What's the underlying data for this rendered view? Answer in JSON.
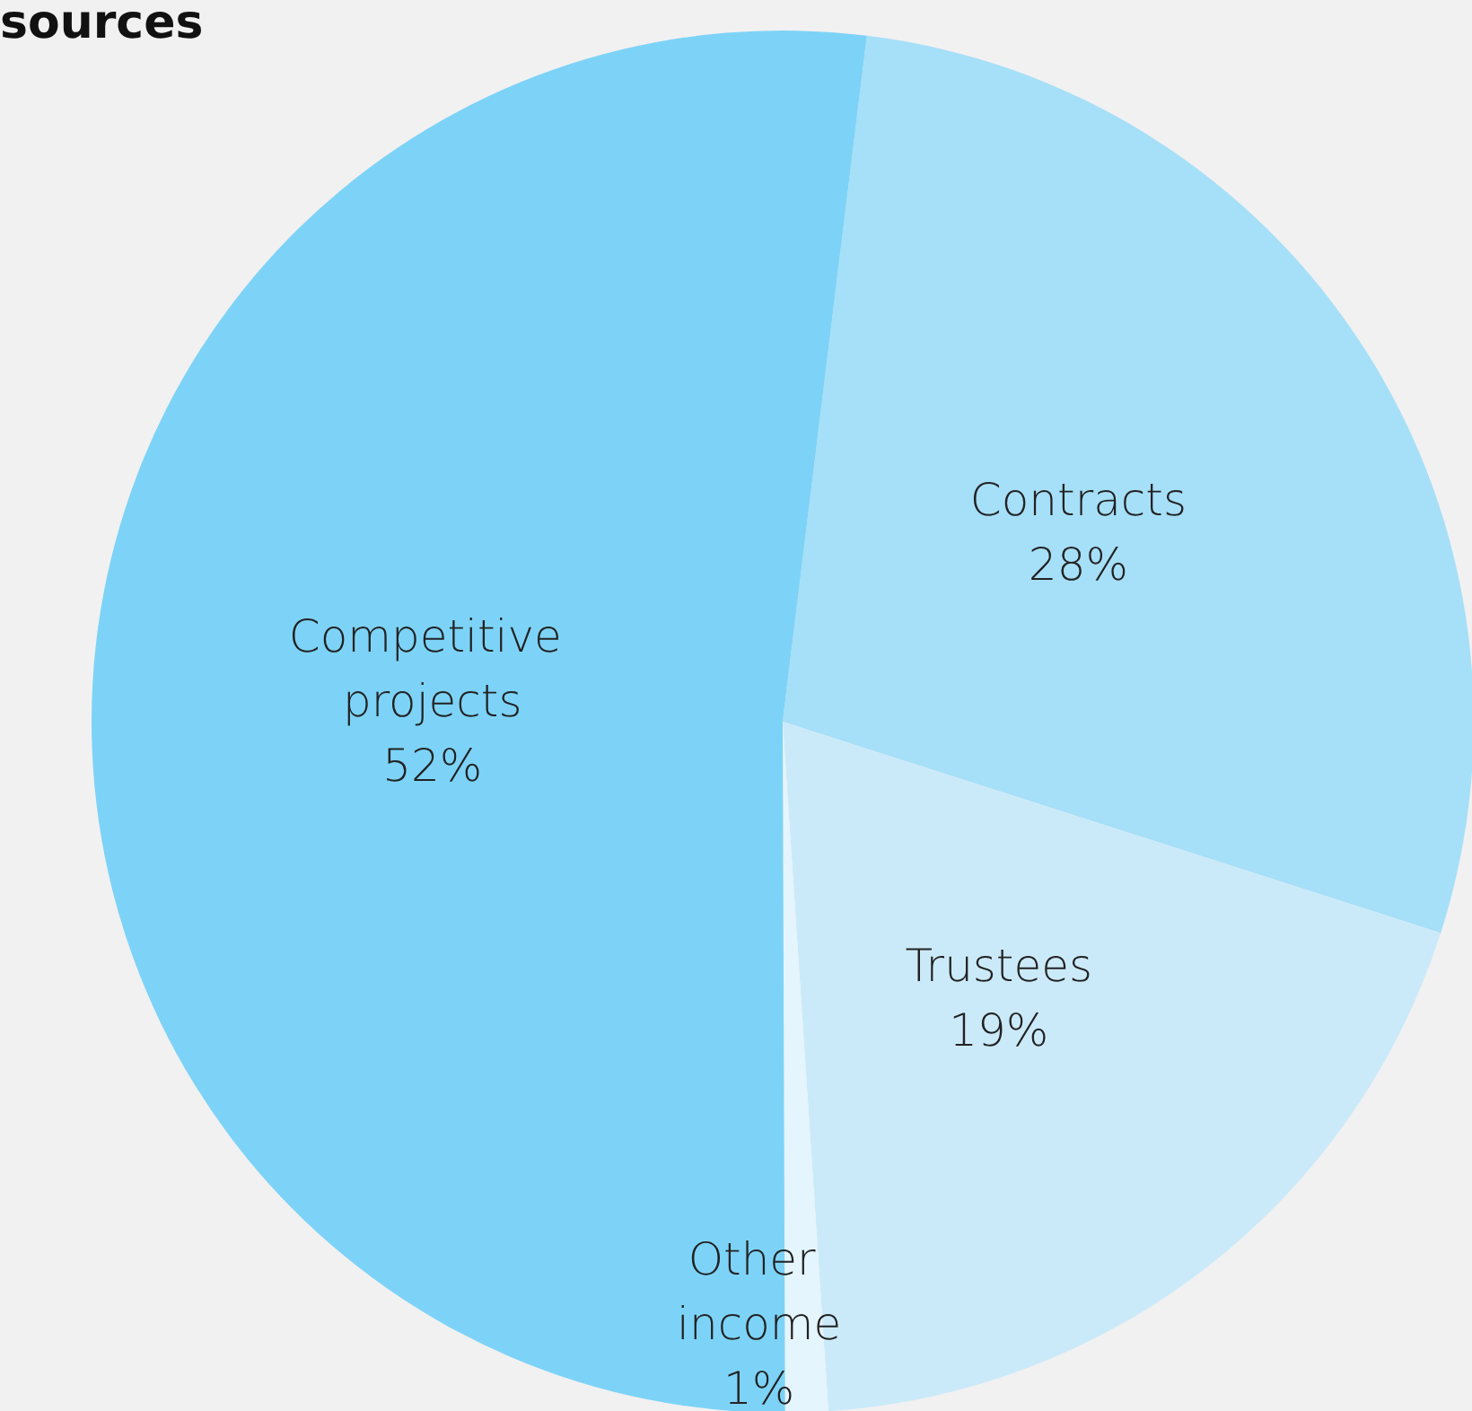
{
  "chart_data": {
    "type": "pie",
    "title": "sources",
    "categories": [
      "Contracts",
      "Trustees",
      "Other income",
      "Competitive projects"
    ],
    "values": [
      28,
      19,
      1,
      52
    ],
    "colors": [
      "#a6dff8",
      "#cbeaf9",
      "#e4f5fd",
      "#7dd3f7"
    ],
    "value_labels": [
      "28%",
      "19%",
      "1%",
      "52%"
    ],
    "legend": false
  }
}
